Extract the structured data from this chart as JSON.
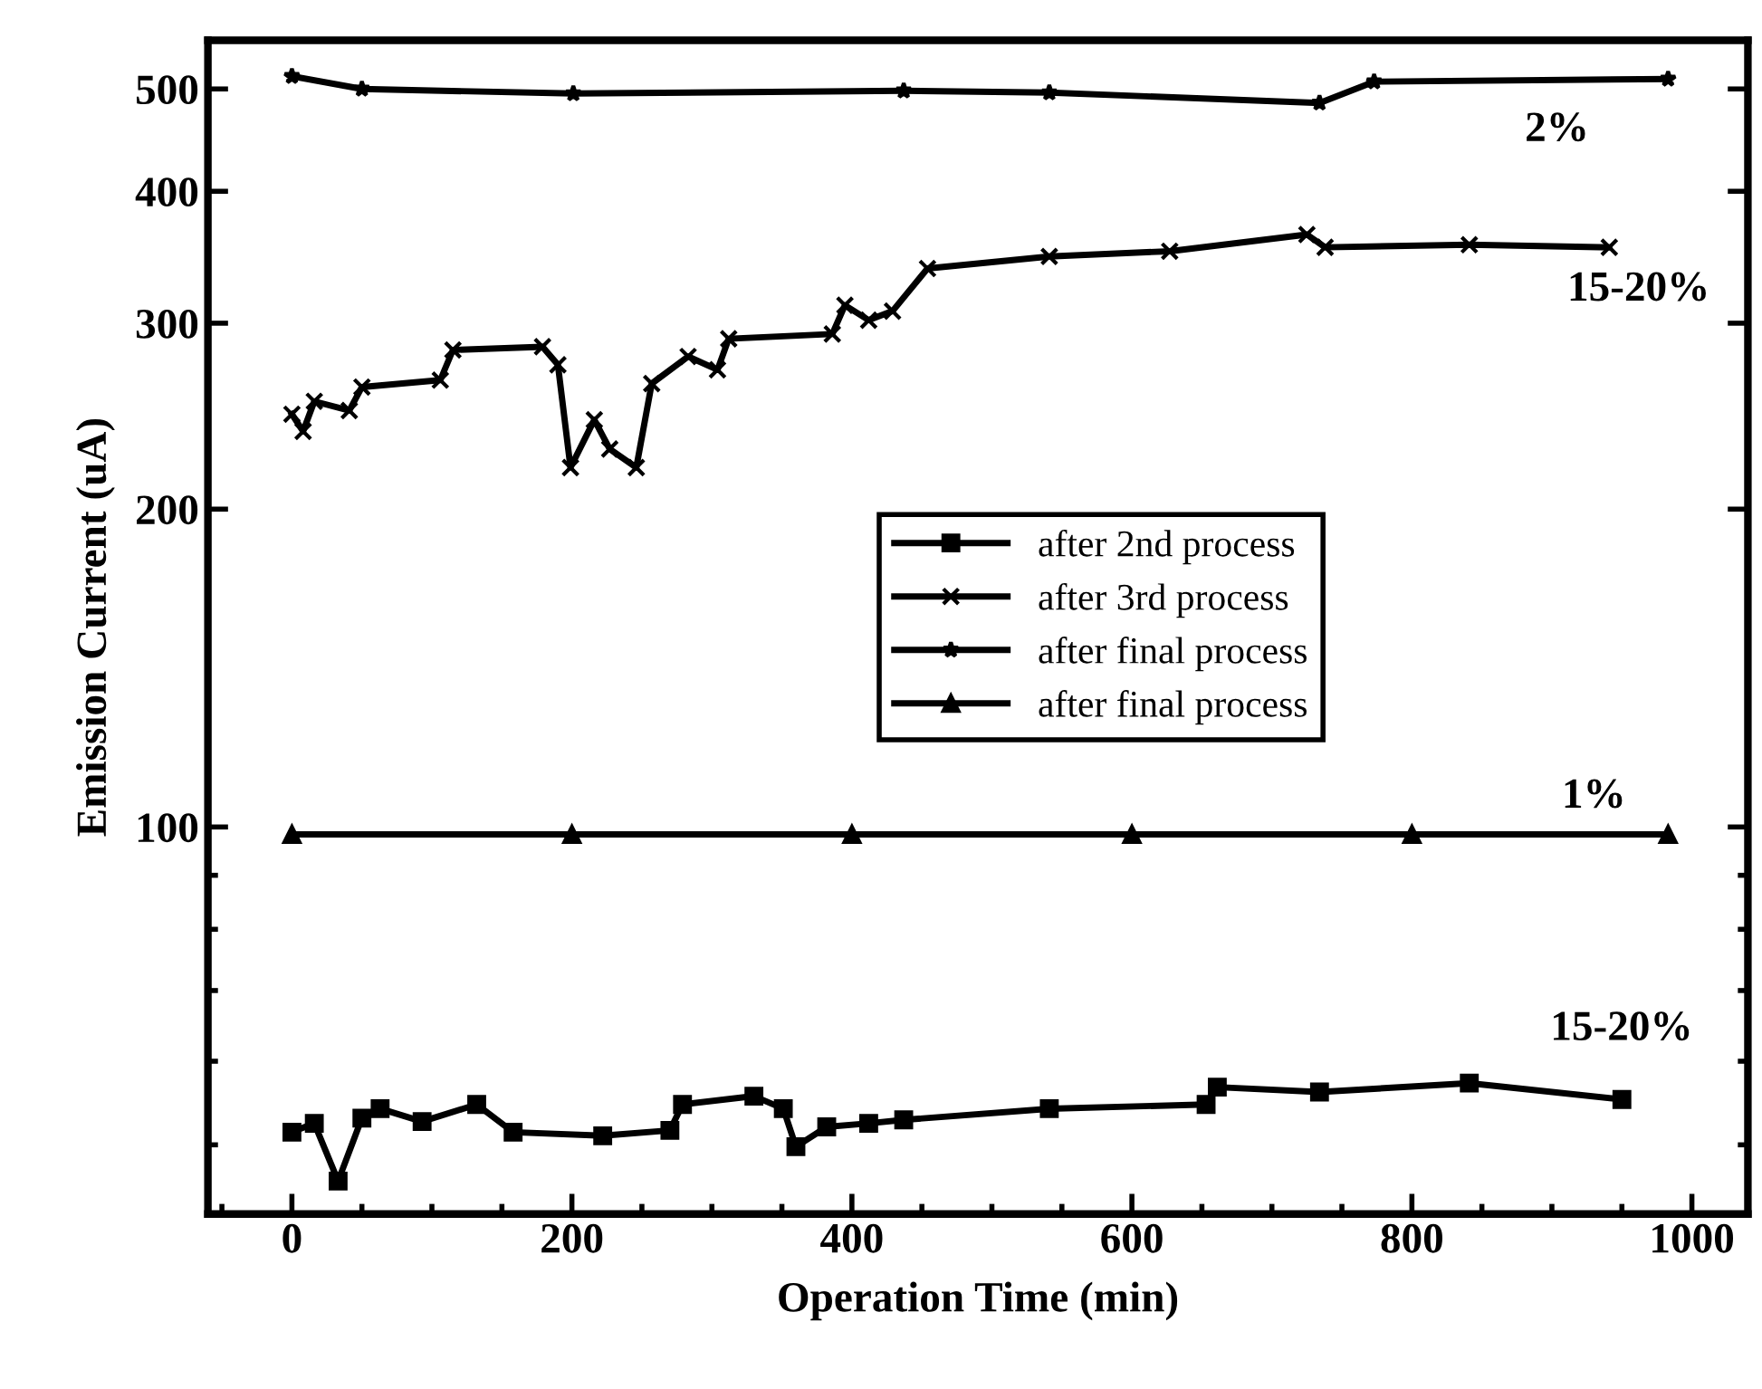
{
  "chart_data": {
    "type": "line",
    "xlabel": "Operation Time (min)",
    "ylabel": "Emission Current (uA)",
    "log": "y",
    "xlim": [
      -60,
      1040
    ],
    "xticks": [
      0,
      200,
      400,
      600,
      800,
      1000
    ],
    "ylim": [
      43,
      556
    ],
    "yticks": [
      100,
      200,
      300,
      400,
      500
    ],
    "grid": false,
    "legend": "center",
    "line_style": "solid",
    "series": [
      {
        "name": "after 2nd process",
        "color": "#000000",
        "marker": "square",
        "x": [
          0,
          16,
          33,
          50,
          63,
          93,
          132,
          158,
          222,
          270,
          279,
          330,
          351,
          360,
          382,
          412,
          437,
          541,
          653,
          661,
          734,
          841,
          950
        ],
        "values": [
          51.4,
          52.4,
          46.2,
          53.0,
          54.1,
          52.6,
          54.6,
          51.4,
          51.0,
          51.6,
          54.6,
          55.6,
          54.1,
          49.8,
          52.0,
          52.4,
          52.8,
          54.1,
          54.6,
          56.7,
          56.1,
          57.2,
          55.2
        ]
      },
      {
        "name": "after 3rd process",
        "color": "#000000",
        "marker": "cross",
        "x": [
          0,
          8,
          16,
          41,
          50,
          106,
          115,
          179,
          190,
          199,
          216,
          227,
          246,
          257,
          283,
          304,
          312,
          386,
          395,
          412,
          429,
          454,
          541,
          627,
          725,
          738,
          841,
          941
        ],
        "values": [
          246,
          237,
          253,
          248,
          261,
          265,
          283,
          285,
          274,
          219,
          243,
          228,
          219,
          263,
          279,
          271,
          290,
          293,
          312,
          302,
          308,
          338,
          347,
          351,
          364,
          354,
          356,
          354
        ]
      },
      {
        "name": "after final process",
        "color": "#000000",
        "marker": "star",
        "x": [
          0,
          50,
          201,
          437,
          541,
          734,
          773,
          983
        ],
        "values": [
          514,
          500,
          495,
          498,
          496,
          485,
          508,
          511
        ]
      },
      {
        "name": "after final process",
        "color": "#000000",
        "marker": "triangle",
        "x": [
          0,
          200,
          400,
          600,
          800,
          983
        ],
        "values": [
          98.4,
          98.4,
          98.4,
          98.4,
          98.4,
          98.4
        ]
      }
    ],
    "annotations": [
      "2%",
      "15-20%",
      "1%",
      "15-20%"
    ]
  }
}
